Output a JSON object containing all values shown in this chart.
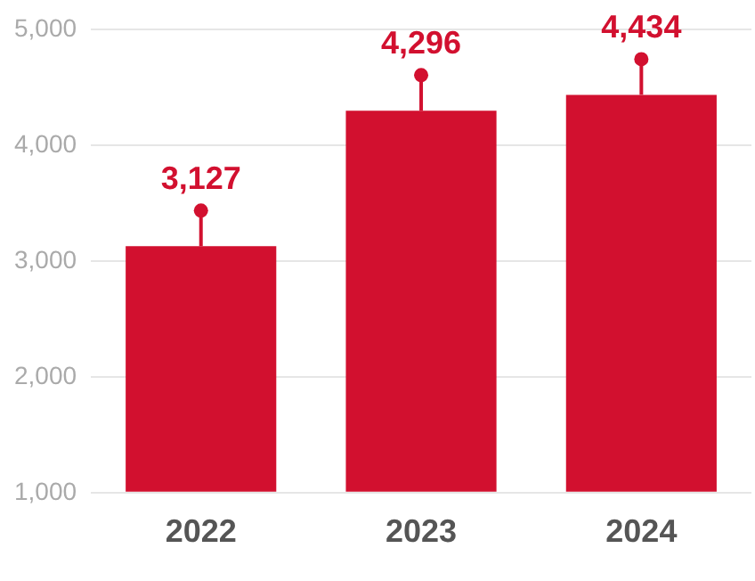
{
  "chart_data": {
    "type": "bar",
    "categories": [
      "2022",
      "2023",
      "2024"
    ],
    "values": [
      3127,
      4296,
      4434
    ],
    "color": "#d2102f",
    "ylim": [
      1000,
      5000
    ],
    "yticks": [
      {
        "value": 1000,
        "label": "1,000"
      },
      {
        "value": 2000,
        "label": "2,000"
      },
      {
        "value": 3000,
        "label": "3,000"
      },
      {
        "value": 4000,
        "label": "4,000"
      },
      {
        "value": 5000,
        "label": "5,000"
      }
    ],
    "value_labels": [
      "3,127",
      "4,296",
      "4,434"
    ],
    "grid": "y"
  }
}
